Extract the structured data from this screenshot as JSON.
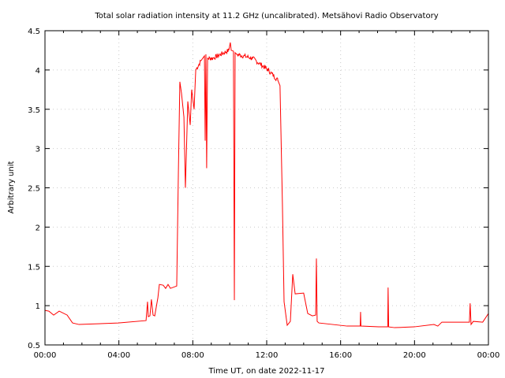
{
  "chart_data": {
    "type": "line",
    "title": "Total solar radiation intensity at 11.2 GHz (uncalibrated). Metsähovi Radio Observatory",
    "xlabel": "Time UT, on date 2022-11-17",
    "ylabel": "Arbitrary unit",
    "xlim": [
      0,
      24
    ],
    "ylim": [
      0.5,
      4.5
    ],
    "grid": true,
    "x_ticks": [
      0,
      4,
      8,
      12,
      16,
      20,
      24
    ],
    "x_tick_labels": [
      "00:00",
      "04:00",
      "08:00",
      "12:00",
      "16:00",
      "20:00",
      "00:00"
    ],
    "y_ticks": [
      0.5,
      1,
      1.5,
      2,
      2.5,
      3,
      3.5,
      4,
      4.5
    ],
    "y_tick_labels": [
      "0.5",
      "1",
      "1.5",
      "2",
      "2.5",
      "3",
      "3.5",
      "4",
      "4.5"
    ],
    "series": [
      {
        "name": "11.2 GHz",
        "color": "#ff0000",
        "x_unit": "hours UT",
        "points": [
          [
            0,
            0.94
          ],
          [
            0.21,
            0.93
          ],
          [
            0.47,
            0.88
          ],
          [
            0.77,
            0.93
          ],
          [
            1.2,
            0.88
          ],
          [
            1.49,
            0.78
          ],
          [
            1.84,
            0.76
          ],
          [
            3.97,
            0.78
          ],
          [
            5.47,
            0.81
          ],
          [
            5.55,
            1.05
          ],
          [
            5.59,
            0.86
          ],
          [
            5.68,
            0.87
          ],
          [
            5.76,
            1.08
          ],
          [
            5.85,
            0.88
          ],
          [
            5.94,
            0.87
          ],
          [
            6.11,
            1.1
          ],
          [
            6.19,
            1.27
          ],
          [
            6.4,
            1.26
          ],
          [
            6.53,
            1.22
          ],
          [
            6.66,
            1.27
          ],
          [
            6.79,
            1.22
          ],
          [
            7.13,
            1.25
          ],
          [
            7.22,
            2.7
          ],
          [
            7.3,
            3.85
          ],
          [
            7.39,
            3.7
          ],
          [
            7.52,
            3.4
          ],
          [
            7.6,
            2.5
          ],
          [
            7.73,
            3.6
          ],
          [
            7.86,
            3.3
          ],
          [
            7.94,
            3.75
          ],
          [
            8.07,
            3.5
          ],
          [
            8.16,
            4.0
          ],
          [
            8.45,
            4.12
          ],
          [
            8.63,
            4.18
          ],
          [
            8.67,
            3.1
          ],
          [
            8.71,
            4.2
          ],
          [
            8.75,
            2.75
          ],
          [
            8.8,
            4.15
          ],
          [
            9.09,
            4.15
          ],
          [
            9.95,
            4.25
          ],
          [
            10.03,
            4.35
          ],
          [
            10.08,
            4.25
          ],
          [
            10.2,
            4.24
          ],
          [
            10.25,
            1.07
          ],
          [
            10.29,
            4.22
          ],
          [
            10.38,
            4.2
          ],
          [
            11.23,
            4.15
          ],
          [
            12.08,
            4.0
          ],
          [
            12.6,
            3.87
          ],
          [
            12.72,
            3.8
          ],
          [
            12.85,
            2.3
          ],
          [
            12.94,
            1.05
          ],
          [
            13.11,
            0.75
          ],
          [
            13.28,
            0.8
          ],
          [
            13.41,
            1.4
          ],
          [
            13.54,
            1.15
          ],
          [
            14.0,
            1.16
          ],
          [
            14.22,
            0.9
          ],
          [
            14.47,
            0.87
          ],
          [
            14.65,
            0.88
          ],
          [
            14.69,
            1.6
          ],
          [
            14.73,
            0.8
          ],
          [
            14.82,
            0.78
          ],
          [
            16.35,
            0.74
          ],
          [
            17.06,
            0.74
          ],
          [
            17.08,
            0.92
          ],
          [
            17.1,
            0.74
          ],
          [
            18.06,
            0.73
          ],
          [
            18.55,
            0.73
          ],
          [
            18.57,
            1.23
          ],
          [
            18.6,
            0.73
          ],
          [
            18.92,
            0.72
          ],
          [
            19.98,
            0.73
          ],
          [
            21.05,
            0.76
          ],
          [
            21.26,
            0.74
          ],
          [
            21.48,
            0.79
          ],
          [
            22.97,
            0.79
          ],
          [
            23.01,
            1.03
          ],
          [
            23.06,
            0.76
          ],
          [
            23.18,
            0.8
          ],
          [
            23.69,
            0.79
          ],
          [
            24,
            0.9
          ]
        ]
      }
    ]
  }
}
